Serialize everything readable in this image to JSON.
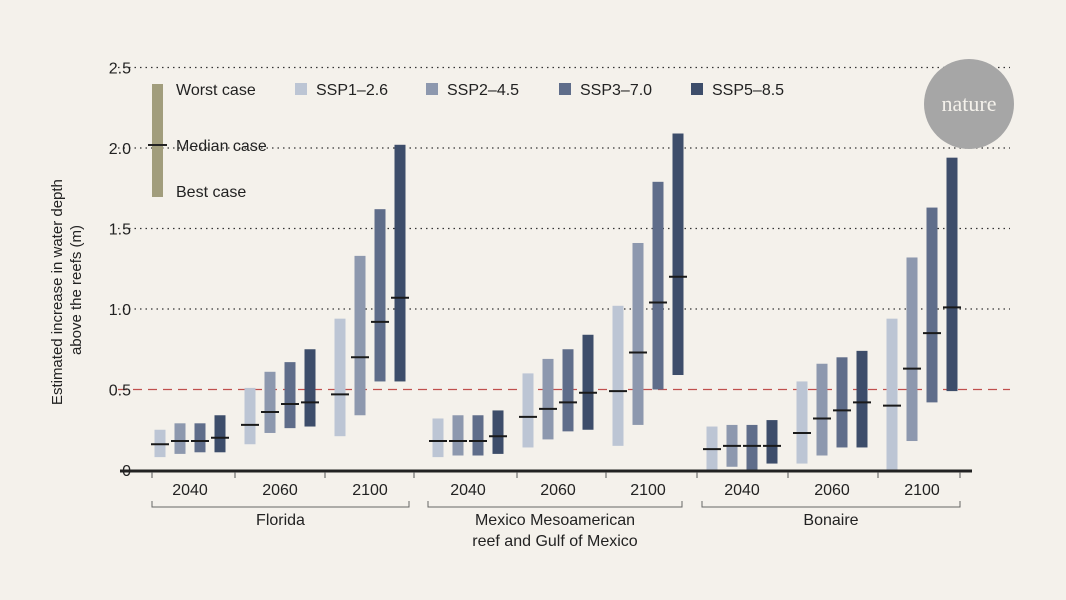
{
  "chart_data": {
    "type": "bar",
    "subtype": "floating-range-with-median",
    "title": "",
    "ylabel_lines": [
      "Estimated increase in water depth",
      "above the reefs (m)"
    ],
    "ylim": [
      0,
      2.5
    ],
    "yticks": [
      0,
      0.5,
      1.0,
      1.5,
      2.0,
      2.5
    ],
    "ytick_labels": [
      "0",
      "0.5",
      "1.0",
      "1.5",
      "2.0",
      "2.5"
    ],
    "grid": "dotted horizontal at 1.0, 1.5, 2.0, 2.5",
    "reference_line": {
      "value": 0.5,
      "style": "dashed",
      "color": "#c0504d"
    },
    "legend": {
      "placement": "top",
      "key_labels": {
        "worst": "Worst case",
        "median": "Median case",
        "best": "Best case"
      },
      "key_color": "#a19d7c",
      "series": [
        {
          "name": "SSP1–2.6",
          "color": "#bcc5d4"
        },
        {
          "name": "SSP2–4.5",
          "color": "#8d98ae"
        },
        {
          "name": "SSP3–7.0",
          "color": "#5f6d8a"
        },
        {
          "name": "SSP5–8.5",
          "color": "#3d4d6a"
        }
      ]
    },
    "regions": [
      {
        "name": "Florida",
        "label_lines": [
          "Florida"
        ],
        "years": [
          {
            "year": "2040",
            "bars": [
              {
                "best": 0.08,
                "median": 0.16,
                "worst": 0.25
              },
              {
                "best": 0.1,
                "median": 0.18,
                "worst": 0.29
              },
              {
                "best": 0.11,
                "median": 0.18,
                "worst": 0.29
              },
              {
                "best": 0.11,
                "median": 0.2,
                "worst": 0.34
              }
            ]
          },
          {
            "year": "2060",
            "bars": [
              {
                "best": 0.16,
                "median": 0.28,
                "worst": 0.51
              },
              {
                "best": 0.23,
                "median": 0.36,
                "worst": 0.61
              },
              {
                "best": 0.26,
                "median": 0.41,
                "worst": 0.67
              },
              {
                "best": 0.27,
                "median": 0.42,
                "worst": 0.75
              }
            ]
          },
          {
            "year": "2100",
            "bars": [
              {
                "best": 0.21,
                "median": 0.47,
                "worst": 0.94
              },
              {
                "best": 0.34,
                "median": 0.7,
                "worst": 1.33
              },
              {
                "best": 0.55,
                "median": 0.92,
                "worst": 1.62
              },
              {
                "best": 0.55,
                "median": 1.07,
                "worst": 2.02
              }
            ]
          }
        ]
      },
      {
        "name": "Mexico Mesoamerican reef and Gulf of Mexico",
        "label_lines": [
          "Mexico Mesoamerican",
          "reef and Gulf of Mexico"
        ],
        "years": [
          {
            "year": "2040",
            "bars": [
              {
                "best": 0.08,
                "median": 0.18,
                "worst": 0.32
              },
              {
                "best": 0.09,
                "median": 0.18,
                "worst": 0.34
              },
              {
                "best": 0.09,
                "median": 0.18,
                "worst": 0.34
              },
              {
                "best": 0.1,
                "median": 0.21,
                "worst": 0.37
              }
            ]
          },
          {
            "year": "2060",
            "bars": [
              {
                "best": 0.14,
                "median": 0.33,
                "worst": 0.6
              },
              {
                "best": 0.19,
                "median": 0.38,
                "worst": 0.69
              },
              {
                "best": 0.24,
                "median": 0.42,
                "worst": 0.75
              },
              {
                "best": 0.25,
                "median": 0.48,
                "worst": 0.84
              }
            ]
          },
          {
            "year": "2100",
            "bars": [
              {
                "best": 0.15,
                "median": 0.49,
                "worst": 1.02
              },
              {
                "best": 0.28,
                "median": 0.73,
                "worst": 1.41
              },
              {
                "best": 0.5,
                "median": 1.04,
                "worst": 1.79
              },
              {
                "best": 0.59,
                "median": 1.2,
                "worst": 2.09
              }
            ]
          }
        ]
      },
      {
        "name": "Bonaire",
        "label_lines": [
          "Bonaire"
        ],
        "years": [
          {
            "year": "2040",
            "bars": [
              {
                "best": 0.0,
                "median": 0.13,
                "worst": 0.27
              },
              {
                "best": 0.02,
                "median": 0.15,
                "worst": 0.28
              },
              {
                "best": 0.0,
                "median": 0.15,
                "worst": 0.28
              },
              {
                "best": 0.04,
                "median": 0.15,
                "worst": 0.31
              }
            ]
          },
          {
            "year": "2060",
            "bars": [
              {
                "best": 0.04,
                "median": 0.23,
                "worst": 0.55
              },
              {
                "best": 0.09,
                "median": 0.32,
                "worst": 0.66
              },
              {
                "best": 0.14,
                "median": 0.37,
                "worst": 0.7
              },
              {
                "best": 0.14,
                "median": 0.42,
                "worst": 0.74
              }
            ]
          },
          {
            "year": "2100",
            "bars": [
              {
                "best": 0.0,
                "median": 0.4,
                "worst": 0.94
              },
              {
                "best": 0.18,
                "median": 0.63,
                "worst": 1.32
              },
              {
                "best": 0.42,
                "median": 0.85,
                "worst": 1.63
              },
              {
                "best": 0.49,
                "median": 1.01,
                "worst": 1.94
              }
            ]
          }
        ]
      }
    ]
  },
  "branding": {
    "logo_text": "nature",
    "logo_color": "#a6a6a6"
  }
}
